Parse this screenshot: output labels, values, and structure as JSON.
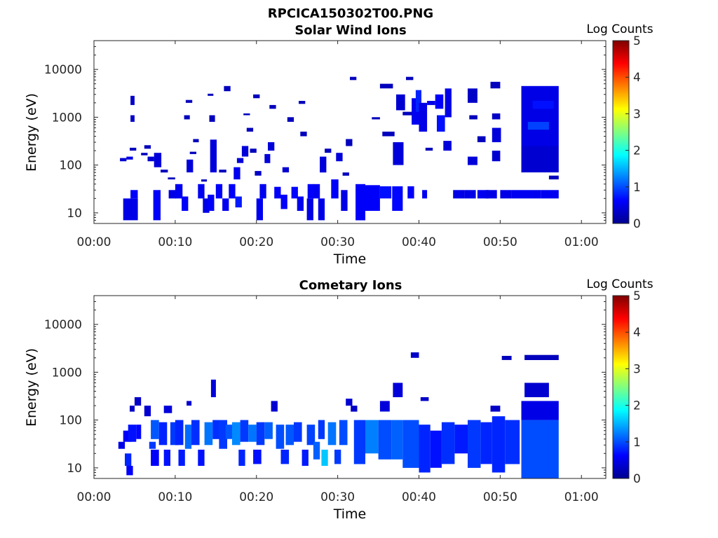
{
  "figure": {
    "title": "RPCICA150302T00.PNG",
    "colors": {
      "background": "#ffffff",
      "axis": "#262626"
    }
  },
  "chart_data": [
    {
      "type": "heatmap",
      "title": "Solar Wind Ions",
      "xlabel": "Time",
      "ylabel": "Energy (eV)",
      "y_scale": "log",
      "xlim_minutes": [
        0,
        63
      ],
      "ylim_ev": [
        6,
        40000
      ],
      "x_tick_labels": [
        "00:00",
        "00:10",
        "00:20",
        "00:30",
        "00:40",
        "00:50",
        "01:00"
      ],
      "y_tick_labels": [
        "10",
        "100",
        "1000",
        "10000"
      ],
      "colorbar": {
        "label": "Log Counts",
        "ticks": [
          "0",
          "1",
          "2",
          "3",
          "4",
          "5"
        ],
        "range": [
          0,
          5
        ],
        "colormap": "jet"
      },
      "cells": [
        [
          3.6,
          5.4,
          7,
          20,
          0.5
        ],
        [
          4.5,
          5.4,
          20,
          30,
          0.6
        ],
        [
          3.2,
          4.0,
          120,
          140,
          0.4
        ],
        [
          4.0,
          4.8,
          130,
          150,
          0.5
        ],
        [
          4.4,
          5.2,
          200,
          230,
          0.3
        ],
        [
          4.5,
          5.0,
          1800,
          2800,
          0.35
        ],
        [
          4.5,
          5.0,
          800,
          1100,
          0.35
        ],
        [
          5.8,
          6.6,
          160,
          180,
          0.3
        ],
        [
          6.2,
          7.0,
          220,
          260,
          0.3
        ],
        [
          7.3,
          8.2,
          7,
          30,
          0.6
        ],
        [
          6.6,
          7.4,
          120,
          150,
          0.4
        ],
        [
          7.4,
          8.3,
          90,
          180,
          0.45
        ],
        [
          8.2,
          9.1,
          70,
          80,
          0.3
        ],
        [
          9.1,
          10.0,
          50,
          55,
          0.3
        ],
        [
          9.2,
          10.1,
          20,
          30,
          0.5
        ],
        [
          10.0,
          10.9,
          20,
          40,
          0.55
        ],
        [
          10.8,
          11.6,
          11,
          22,
          0.6
        ],
        [
          11.1,
          11.8,
          900,
          1100,
          0.3
        ],
        [
          11.4,
          12.2,
          70,
          130,
          0.45
        ],
        [
          11.3,
          12.1,
          2000,
          2300,
          0.3
        ],
        [
          12.2,
          12.9,
          300,
          350,
          0.3
        ],
        [
          11.8,
          12.6,
          170,
          190,
          0.3
        ],
        [
          12.8,
          13.6,
          20,
          40,
          0.55
        ],
        [
          13.2,
          13.9,
          45,
          50,
          0.3
        ],
        [
          13.4,
          14.2,
          10,
          20,
          0.5
        ],
        [
          14.0,
          14.8,
          11,
          24,
          0.6
        ],
        [
          14.3,
          15.1,
          70,
          340,
          0.45
        ],
        [
          14.2,
          14.9,
          800,
          1100,
          0.3
        ],
        [
          14.0,
          14.7,
          2800,
          3100,
          0.3
        ],
        [
          15.0,
          15.8,
          20,
          40,
          0.6
        ],
        [
          15.8,
          16.6,
          11,
          20,
          0.55
        ],
        [
          15.4,
          16.3,
          70,
          80,
          0.3
        ],
        [
          16.0,
          16.8,
          3500,
          4500,
          0.3
        ],
        [
          16.6,
          17.4,
          20,
          40,
          0.6
        ],
        [
          17.4,
          18.2,
          13,
          22,
          0.75
        ],
        [
          17.2,
          18.0,
          50,
          90,
          0.55
        ],
        [
          17.6,
          18.4,
          110,
          140,
          0.45
        ],
        [
          18.2,
          19.0,
          150,
          250,
          0.45
        ],
        [
          19.2,
          20.0,
          180,
          220,
          0.3
        ],
        [
          18.4,
          19.2,
          1100,
          1200,
          0.3
        ],
        [
          18.8,
          19.6,
          500,
          600,
          0.3
        ],
        [
          19.6,
          20.4,
          2500,
          3000,
          0.3
        ],
        [
          20.0,
          20.8,
          7,
          20,
          0.55
        ],
        [
          20.4,
          21.2,
          20,
          40,
          0.55
        ],
        [
          19.8,
          20.6,
          60,
          75,
          0.35
        ],
        [
          21.0,
          21.7,
          110,
          170,
          0.45
        ],
        [
          21.4,
          22.2,
          200,
          300,
          0.45
        ],
        [
          21.6,
          22.4,
          1500,
          1800,
          0.3
        ],
        [
          22.2,
          23.0,
          20,
          35,
          0.6
        ],
        [
          23.0,
          23.8,
          12,
          24,
          0.6
        ],
        [
          23.2,
          24.0,
          70,
          90,
          0.4
        ],
        [
          23.8,
          24.6,
          800,
          1000,
          0.3
        ],
        [
          24.3,
          25.1,
          20,
          35,
          0.65
        ],
        [
          25.0,
          25.8,
          11,
          22,
          0.55
        ],
        [
          25.4,
          26.2,
          400,
          500,
          0.3
        ],
        [
          25.2,
          26.0,
          1900,
          2200,
          0.3
        ],
        [
          26.2,
          27.0,
          7,
          20,
          0.5
        ],
        [
          26.3,
          27.1,
          20,
          40,
          0.6
        ],
        [
          27.0,
          27.8,
          20,
          40,
          0.55
        ],
        [
          27.6,
          28.4,
          7,
          20,
          0.5
        ],
        [
          27.8,
          28.6,
          70,
          150,
          0.45
        ],
        [
          28.4,
          29.2,
          180,
          220,
          0.3
        ],
        [
          29.2,
          30.1,
          20,
          50,
          0.6
        ],
        [
          29.8,
          30.6,
          120,
          180,
          0.45
        ],
        [
          30.4,
          31.2,
          11,
          30,
          0.5
        ],
        [
          30.6,
          31.4,
          60,
          70,
          0.3
        ],
        [
          31.0,
          31.8,
          250,
          350,
          0.3
        ],
        [
          31.5,
          32.3,
          6000,
          7000,
          0.3
        ],
        [
          32.2,
          33.4,
          7,
          40,
          0.6
        ],
        [
          33.4,
          35.2,
          11,
          38,
          0.6
        ],
        [
          34.2,
          35.2,
          900,
          1000,
          0.3
        ],
        [
          35.2,
          36.6,
          20,
          36,
          0.7
        ],
        [
          35.5,
          37.0,
          400,
          500,
          0.3
        ],
        [
          35.2,
          36.8,
          4000,
          5000,
          0.3
        ],
        [
          36.7,
          38.0,
          11,
          36,
          0.65
        ],
        [
          36.8,
          38.1,
          100,
          300,
          0.45
        ],
        [
          37.2,
          38.3,
          1400,
          3000,
          0.4
        ],
        [
          38.0,
          39.2,
          1100,
          1300,
          0.3
        ],
        [
          38.4,
          39.3,
          6000,
          7000,
          0.3
        ],
        [
          38.6,
          39.4,
          20,
          36,
          0.6
        ],
        [
          39.1,
          40.0,
          700,
          2500,
          0.55
        ],
        [
          39.6,
          40.3,
          1300,
          3700,
          0.8
        ],
        [
          40.0,
          41.0,
          500,
          2000,
          0.5
        ],
        [
          40.4,
          41.0,
          20,
          30,
          0.55
        ],
        [
          40.8,
          41.7,
          200,
          230,
          0.3
        ],
        [
          41.0,
          42.0,
          1800,
          2200,
          0.5
        ],
        [
          42.0,
          43.0,
          1500,
          3000,
          0.6
        ],
        [
          42.2,
          43.2,
          500,
          1100,
          0.7
        ],
        [
          43.2,
          44.0,
          1000,
          4000,
          0.5
        ],
        [
          43.0,
          44.0,
          200,
          320,
          0.45
        ],
        [
          44.2,
          45.6,
          20,
          30,
          0.5
        ],
        [
          45.6,
          47.0,
          20,
          30,
          0.5
        ],
        [
          46.0,
          47.2,
          100,
          150,
          0.45
        ],
        [
          46.0,
          47.2,
          2000,
          4000,
          0.35
        ],
        [
          46.2,
          47.2,
          900,
          1100,
          0.3
        ],
        [
          47.2,
          48.2,
          300,
          400,
          0.3
        ],
        [
          47.2,
          48.6,
          20,
          30,
          0.55
        ],
        [
          48.2,
          49.6,
          20,
          30,
          0.5
        ],
        [
          48.8,
          50.0,
          4000,
          5500,
          0.3
        ],
        [
          49.0,
          50.0,
          900,
          1200,
          0.35
        ],
        [
          49.0,
          50.1,
          300,
          600,
          0.45
        ],
        [
          49.0,
          50.0,
          120,
          200,
          0.4
        ],
        [
          50.0,
          51.4,
          20,
          30,
          0.5
        ],
        [
          51.4,
          52.6,
          20,
          30,
          0.55
        ],
        [
          52.6,
          55.0,
          20,
          30,
          0.55
        ],
        [
          52.6,
          57.2,
          70,
          250,
          0.4
        ],
        [
          52.6,
          57.2,
          250,
          4500,
          0.5
        ],
        [
          53.4,
          56.0,
          550,
          800,
          0.95
        ],
        [
          54.0,
          56.6,
          1500,
          2200,
          0.7
        ],
        [
          55.0,
          57.2,
          20,
          30,
          0.55
        ],
        [
          56.0,
          57.2,
          50,
          60,
          0.3
        ]
      ]
    },
    {
      "type": "heatmap",
      "title": "Cometary Ions",
      "xlabel": "Time",
      "ylabel": "Energy (eV)",
      "y_scale": "log",
      "xlim_minutes": [
        0,
        63
      ],
      "ylim_ev": [
        6,
        40000
      ],
      "x_tick_labels": [
        "00:00",
        "00:10",
        "00:20",
        "00:30",
        "00:40",
        "00:50",
        "01:00"
      ],
      "y_tick_labels": [
        "10",
        "100",
        "1000",
        "10000"
      ],
      "colorbar": {
        "label": "Log Counts",
        "ticks": [
          "0",
          "1",
          "2",
          "3",
          "4",
          "5"
        ],
        "range": [
          0,
          5
        ],
        "colormap": "jet"
      },
      "cells": [
        [
          3.0,
          3.8,
          25,
          35,
          0.5
        ],
        [
          3.6,
          4.6,
          35,
          60,
          0.6
        ],
        [
          3.8,
          4.6,
          11,
          20,
          0.8
        ],
        [
          4.0,
          4.8,
          7,
          11,
          0.6
        ],
        [
          4.2,
          5.2,
          35,
          80,
          0.7
        ],
        [
          4.4,
          5.0,
          150,
          200,
          0.35
        ],
        [
          5.0,
          5.8,
          200,
          300,
          0.35
        ],
        [
          5.2,
          5.8,
          40,
          80,
          0.65
        ],
        [
          6.2,
          7.0,
          120,
          200,
          0.4
        ],
        [
          6.8,
          7.6,
          25,
          35,
          0.9
        ],
        [
          7.0,
          8.0,
          11,
          24,
          0.6
        ],
        [
          7.0,
          8.0,
          40,
          100,
          1.05
        ],
        [
          8.0,
          9.0,
          30,
          90,
          0.8
        ],
        [
          8.6,
          9.6,
          140,
          200,
          0.45
        ],
        [
          8.6,
          9.4,
          11,
          24,
          0.7
        ],
        [
          9.4,
          10.4,
          30,
          90,
          0.9
        ],
        [
          10.0,
          11.0,
          30,
          100,
          0.8
        ],
        [
          10.4,
          11.2,
          11,
          24,
          0.75
        ],
        [
          11.2,
          12.0,
          25,
          80,
          1.15
        ],
        [
          11.4,
          12.0,
          200,
          250,
          0.4
        ],
        [
          12.0,
          13.0,
          30,
          100,
          0.85
        ],
        [
          12.8,
          13.6,
          11,
          24,
          0.7
        ],
        [
          13.6,
          14.6,
          30,
          90,
          1.2
        ],
        [
          14.4,
          15.0,
          300,
          700,
          0.45
        ],
        [
          14.6,
          15.4,
          40,
          100,
          0.85
        ],
        [
          15.4,
          16.4,
          25,
          100,
          0.9
        ],
        [
          16.2,
          17.0,
          40,
          80,
          1.05
        ],
        [
          17.0,
          18.0,
          30,
          90,
          1.3
        ],
        [
          17.8,
          18.6,
          11,
          24,
          0.8
        ],
        [
          18.0,
          19.0,
          35,
          100,
          0.9
        ],
        [
          19.0,
          20.0,
          35,
          80,
          1.2
        ],
        [
          19.6,
          20.6,
          12,
          24,
          0.7
        ],
        [
          20.0,
          21.0,
          30,
          90,
          0.9
        ],
        [
          21.0,
          22.0,
          40,
          90,
          1.1
        ],
        [
          21.8,
          22.6,
          150,
          250,
          0.4
        ],
        [
          22.4,
          23.4,
          25,
          80,
          1.0
        ],
        [
          23.0,
          24.0,
          12,
          24,
          0.8
        ],
        [
          23.6,
          24.6,
          30,
          80,
          1.05
        ],
        [
          24.6,
          25.6,
          35,
          90,
          0.9
        ],
        [
          25.6,
          26.4,
          11,
          24,
          0.75
        ],
        [
          26.2,
          27.2,
          30,
          80,
          0.95
        ],
        [
          27.0,
          27.8,
          15,
          35,
          1.1
        ],
        [
          27.6,
          28.4,
          40,
          100,
          0.9
        ],
        [
          28.0,
          28.8,
          11,
          24,
          1.6
        ],
        [
          28.8,
          29.8,
          30,
          90,
          1.2
        ],
        [
          29.6,
          30.4,
          12,
          24,
          0.9
        ],
        [
          30.2,
          31.2,
          30,
          100,
          1.0
        ],
        [
          31.0,
          31.8,
          200,
          280,
          0.4
        ],
        [
          31.6,
          32.4,
          150,
          200,
          0.35
        ],
        [
          32.0,
          33.4,
          12,
          100,
          0.9
        ],
        [
          33.4,
          35.0,
          20,
          100,
          1.25
        ],
        [
          35.0,
          36.6,
          15,
          100,
          1.0
        ],
        [
          35.2,
          36.4,
          150,
          250,
          0.45
        ],
        [
          36.6,
          38.0,
          15,
          100,
          1.1
        ],
        [
          36.8,
          38.0,
          300,
          600,
          0.45
        ],
        [
          38.0,
          40.0,
          10,
          100,
          1.0
        ],
        [
          39.0,
          40.0,
          2000,
          2600,
          0.35
        ],
        [
          40.0,
          41.4,
          8,
          80,
          0.8
        ],
        [
          40.2,
          41.2,
          250,
          300,
          0.35
        ],
        [
          41.4,
          42.8,
          10,
          60,
          0.7
        ],
        [
          42.8,
          44.4,
          12,
          90,
          0.85
        ],
        [
          44.4,
          46.0,
          20,
          80,
          0.75
        ],
        [
          46.0,
          47.6,
          10,
          100,
          0.9
        ],
        [
          47.6,
          49.0,
          12,
          90,
          0.8
        ],
        [
          48.8,
          50.0,
          150,
          200,
          0.35
        ],
        [
          49.0,
          50.6,
          8,
          120,
          0.8
        ],
        [
          50.2,
          51.4,
          1800,
          2200,
          0.3
        ],
        [
          50.6,
          52.4,
          12,
          100,
          0.85
        ],
        [
          52.6,
          57.2,
          6,
          100,
          1.0
        ],
        [
          52.6,
          57.2,
          100,
          250,
          0.5
        ],
        [
          53.0,
          56.0,
          300,
          600,
          0.4
        ],
        [
          53.0,
          57.2,
          1800,
          2300,
          0.3
        ]
      ]
    }
  ]
}
